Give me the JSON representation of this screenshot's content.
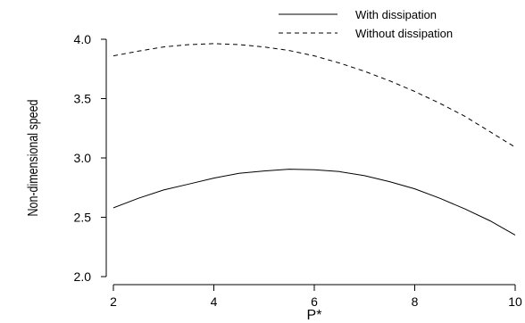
{
  "chart_data": {
    "type": "line",
    "title": "",
    "xlabel": "P*",
    "ylabel": "Non-dimensional speed",
    "xlim": [
      2,
      10
    ],
    "ylim": [
      2.0,
      4.0
    ],
    "xticks": [
      2,
      4,
      6,
      8,
      10
    ],
    "yticks": [
      2.0,
      2.5,
      3.0,
      3.5,
      4.0
    ],
    "xtick_labels": [
      "2",
      "4",
      "6",
      "8",
      "10"
    ],
    "ytick_labels": [
      "2.0",
      "2.5",
      "3.0",
      "3.5",
      "4.0"
    ],
    "grid": false,
    "legend_position": "top-right",
    "series": [
      {
        "name": "With dissipation",
        "style": "solid",
        "color": "#000000",
        "x": [
          2,
          2.5,
          3,
          3.5,
          4,
          4.5,
          5,
          5.5,
          6,
          6.5,
          7,
          7.5,
          8,
          8.5,
          9,
          9.5,
          10
        ],
        "y": [
          2.58,
          2.66,
          2.73,
          2.78,
          2.83,
          2.87,
          2.89,
          2.905,
          2.9,
          2.885,
          2.85,
          2.8,
          2.74,
          2.66,
          2.57,
          2.47,
          2.35
        ]
      },
      {
        "name": "Without dissipation",
        "style": "dashed",
        "color": "#000000",
        "x": [
          2,
          2.5,
          3,
          3.5,
          4,
          4.5,
          5,
          5.5,
          6,
          6.5,
          7,
          7.5,
          8,
          8.5,
          9,
          9.5,
          10
        ],
        "y": [
          3.86,
          3.9,
          3.935,
          3.955,
          3.963,
          3.955,
          3.935,
          3.905,
          3.86,
          3.8,
          3.73,
          3.65,
          3.56,
          3.46,
          3.35,
          3.22,
          3.09
        ]
      }
    ]
  }
}
